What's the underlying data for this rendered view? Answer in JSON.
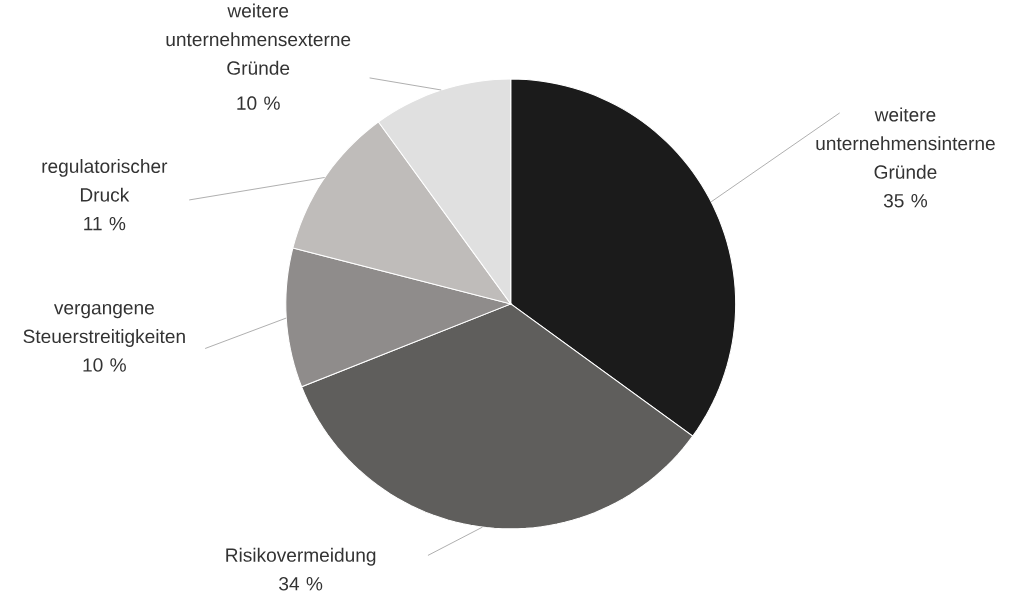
{
  "chart_data": {
    "type": "pie",
    "categories": [
      "weitere unternehmensinterne Gründe",
      "Risikovermeidung",
      "vergangene Steuerstreitigkeiten",
      "regulatorischer Druck",
      "weitere unternehmensexterne Gründe"
    ],
    "values": [
      35,
      34,
      10,
      11,
      10
    ],
    "value_labels": [
      "35 %",
      "34 %",
      "10 %",
      "11 %",
      "10 %"
    ],
    "colors": [
      "#1b1b1b",
      "#5f5e5c",
      "#8f8c8b",
      "#bfbcba",
      "#e0e0e0"
    ]
  }
}
